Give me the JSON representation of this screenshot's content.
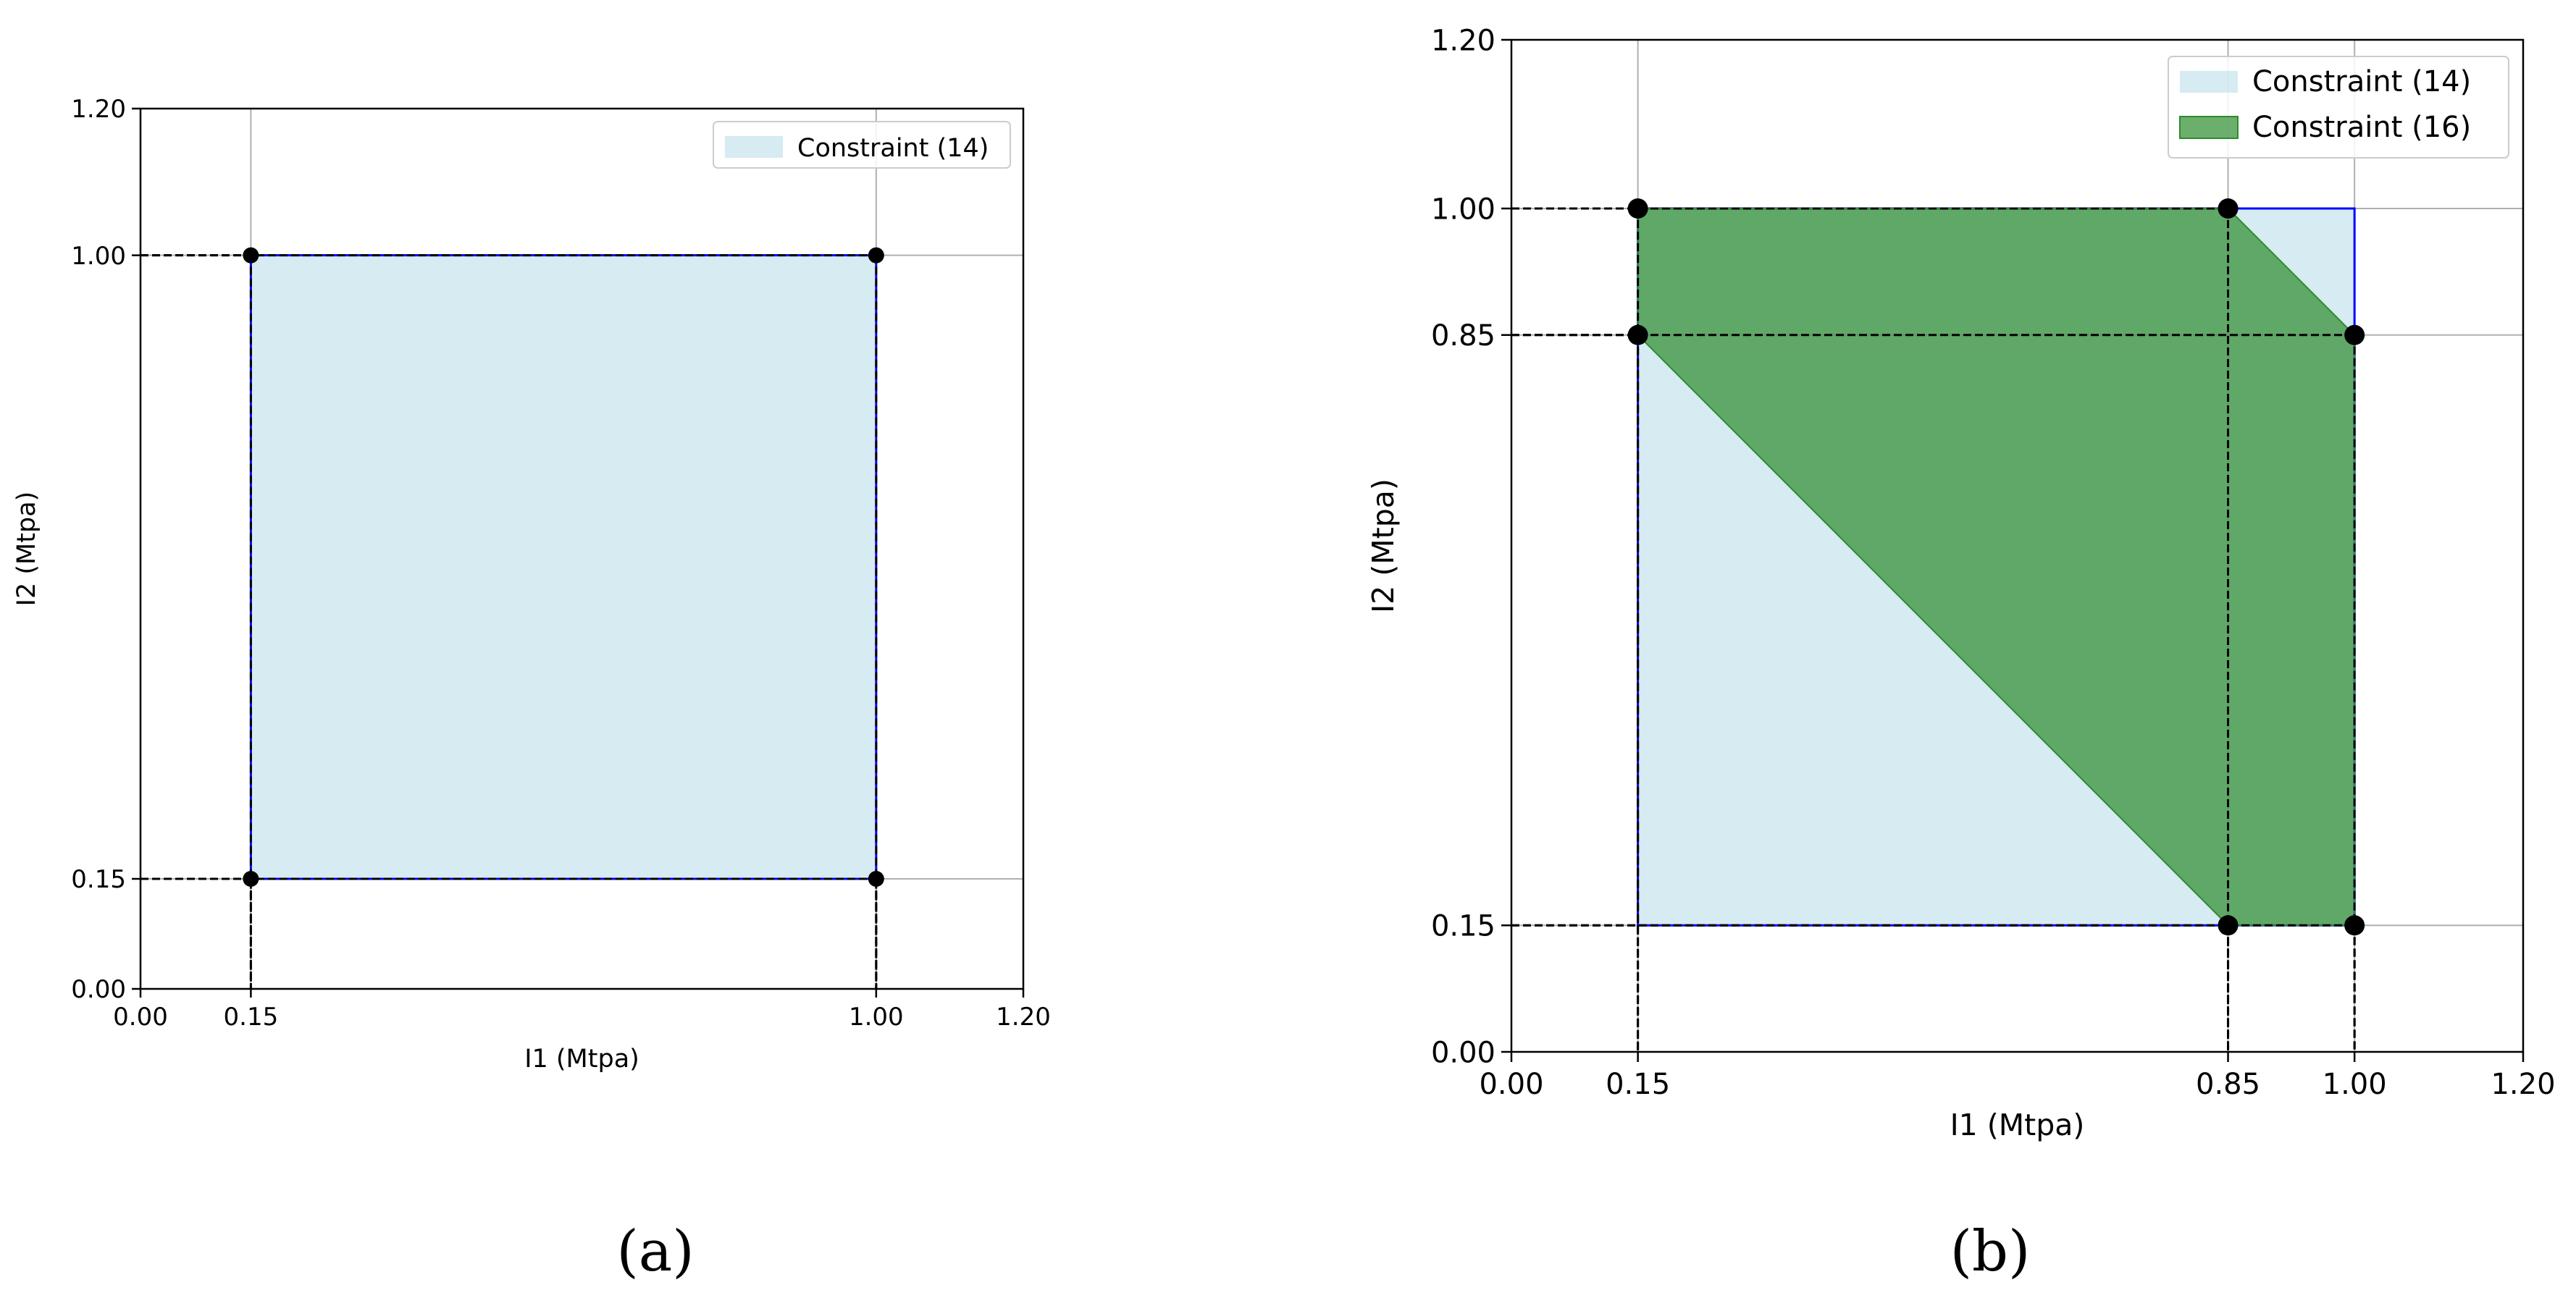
{
  "chart_data": [
    {
      "type": "area",
      "xlabel": "I1 (Mtpa)",
      "ylabel": "I2 (Mtpa)",
      "xlim": [
        0,
        1.2
      ],
      "ylim": [
        0,
        1.2
      ],
      "x_ticks": [
        "0.00",
        "0.15",
        "1.00",
        "1.20"
      ],
      "x_tick_values": [
        0,
        0.15,
        1.0,
        1.2
      ],
      "y_ticks": [
        "0.00",
        "0.15",
        "1.00",
        "1.20"
      ],
      "y_tick_values": [
        0,
        0.15,
        1.0,
        1.2
      ],
      "grid": true,
      "legend_position": "top-right",
      "caption": "(a)",
      "regions": [
        {
          "name": "Constraint (14)",
          "color": "#add8e6",
          "polygon": [
            [
              0.15,
              0.15
            ],
            [
              1.0,
              0.15
            ],
            [
              1.0,
              1.0
            ],
            [
              0.15,
              1.0
            ]
          ]
        }
      ],
      "points": [
        [
          0.15,
          1.0
        ],
        [
          1.0,
          1.0
        ],
        [
          0.15,
          0.15
        ],
        [
          1.0,
          0.15
        ]
      ]
    },
    {
      "type": "area",
      "xlabel": "I1 (Mtpa)",
      "ylabel": "I2 (Mtpa)",
      "xlim": [
        0,
        1.2
      ],
      "ylim": [
        0,
        1.2
      ],
      "x_ticks": [
        "0.00",
        "0.15",
        "0.85",
        "1.00",
        "1.20"
      ],
      "x_tick_values": [
        0,
        0.15,
        0.85,
        1.0,
        1.2
      ],
      "y_ticks": [
        "0.00",
        "0.15",
        "0.85",
        "1.00",
        "1.20"
      ],
      "y_tick_values": [
        0,
        0.15,
        0.85,
        1.0,
        1.2
      ],
      "grid": true,
      "legend_position": "top-right",
      "caption": "(b)",
      "regions": [
        {
          "name": "Constraint (14)",
          "color": "#add8e6",
          "polygon": [
            [
              0.15,
              0.15
            ],
            [
              1.0,
              0.15
            ],
            [
              1.0,
              1.0
            ],
            [
              0.15,
              1.0
            ]
          ]
        },
        {
          "name": "Constraint (16)",
          "color": "#2e8b2e",
          "polygon": [
            [
              0.15,
              1.0
            ],
            [
              0.85,
              1.0
            ],
            [
              1.0,
              0.85
            ],
            [
              1.0,
              0.15
            ],
            [
              0.85,
              0.15
            ],
            [
              0.15,
              0.85
            ]
          ]
        }
      ],
      "points": [
        [
          0.15,
          1.0
        ],
        [
          0.85,
          1.0
        ],
        [
          0.15,
          0.85
        ],
        [
          1.0,
          0.85
        ],
        [
          0.85,
          0.15
        ],
        [
          1.0,
          0.15
        ]
      ]
    }
  ]
}
